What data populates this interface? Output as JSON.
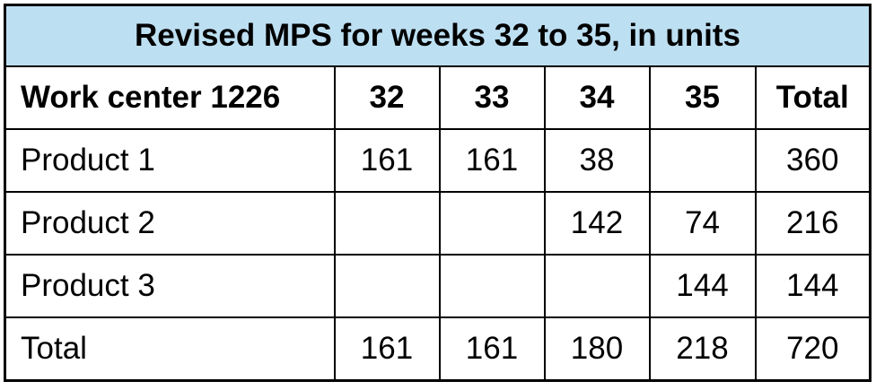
{
  "title": "Revised MPS for weeks 32 to 35, in units",
  "headers": [
    "Work center 1226",
    "32",
    "33",
    "34",
    "35",
    "Total"
  ],
  "rows": [
    [
      "Product 1",
      "161",
      "161",
      "38",
      "",
      "360"
    ],
    [
      "Product 2",
      "",
      "",
      "142",
      "74",
      "216"
    ],
    [
      "Product 3",
      "",
      "",
      "",
      "144",
      "144"
    ],
    [
      "Total",
      "161",
      "161",
      "180",
      "218",
      "720"
    ]
  ],
  "colors": {
    "title_background": "#bddff2",
    "border": "#000000"
  }
}
